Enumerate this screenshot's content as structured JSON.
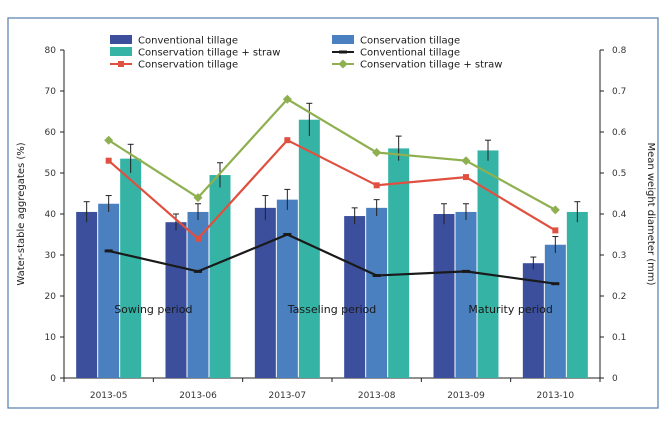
{
  "chart_data": {
    "type": "bar",
    "categories": [
      "2013-05",
      "2013-06",
      "2013-07",
      "2013-08",
      "2013-09",
      "2013-10"
    ],
    "ylabel": "Water-stable aggregates (%)",
    "y2label": "Mean weight diameter (mm)",
    "ylim": [
      0,
      80
    ],
    "y2lim": [
      0,
      0.8
    ],
    "yticks": [
      "0",
      "10",
      "20",
      "30",
      "40",
      "50",
      "60",
      "70",
      "80"
    ],
    "y2ticks": [
      "0",
      "0.1",
      "0.2",
      "0.3",
      "0.4",
      "0.5",
      "0.6",
      "0.7",
      "0.8"
    ],
    "grid": false,
    "legend_position": "top",
    "bar_series": [
      {
        "name": "Conventional tillage",
        "color": "#3b4f9c",
        "values": [
          40.5,
          38,
          41.5,
          39.5,
          40,
          28
        ],
        "errors": [
          2.5,
          2,
          3,
          2,
          2.5,
          1.5
        ]
      },
      {
        "name": "Conservation tillage",
        "color": "#4a7fc0",
        "values": [
          42.5,
          40.5,
          43.5,
          41.5,
          40.5,
          32.5
        ],
        "errors": [
          2,
          2,
          2.5,
          2,
          2,
          2
        ]
      },
      {
        "name": "Conservation tillage + straw",
        "color": "#35b4a6",
        "values": [
          53.5,
          49.5,
          63,
          56,
          55.5,
          40.5
        ],
        "errors": [
          3.5,
          3,
          4,
          3,
          2.5,
          2.5
        ]
      }
    ],
    "line_series": [
      {
        "name": "Conventional tillage",
        "color": "#1a1a1a",
        "marker": "dash",
        "values": [
          0.31,
          0.26,
          0.35,
          0.25,
          0.26,
          0.23
        ]
      },
      {
        "name": "Conservation tillage",
        "color": "#e05040",
        "marker": "square",
        "values": [
          0.53,
          0.34,
          0.58,
          0.47,
          0.49,
          0.36
        ]
      },
      {
        "name": "Conservation tillage + straw",
        "color": "#8fb050",
        "marker": "diamond",
        "values": [
          0.58,
          0.44,
          0.68,
          0.55,
          0.53,
          0.41
        ]
      }
    ],
    "annotations": [
      "Sowing period",
      "Tasseling period",
      "Maturity period"
    ]
  }
}
